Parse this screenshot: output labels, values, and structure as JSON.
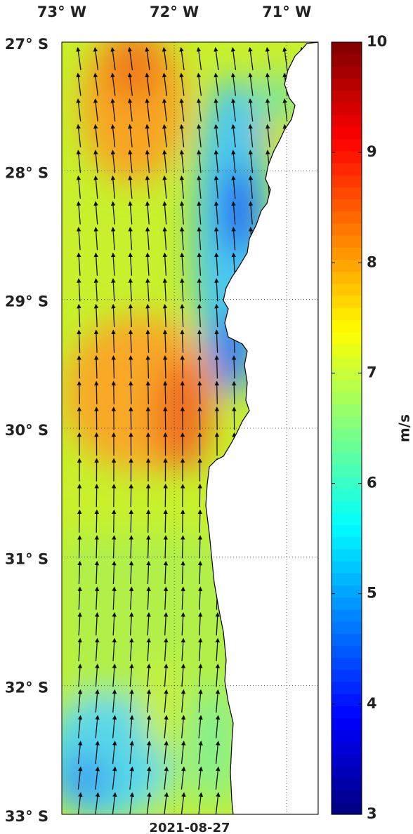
{
  "map": {
    "x_axis": {
      "lim": [
        -73,
        -70.72
      ],
      "ticks": [
        {
          "value": -73,
          "label": "73° W"
        },
        {
          "value": -72,
          "label": "72° W"
        },
        {
          "value": -71,
          "label": "71° W"
        }
      ]
    },
    "y_axis": {
      "lim": [
        -33,
        -27
      ],
      "ticks": [
        {
          "value": -27,
          "label": "27° S"
        },
        {
          "value": -28,
          "label": "28° S"
        },
        {
          "value": -29,
          "label": "29° S"
        },
        {
          "value": -30,
          "label": "30° S"
        },
        {
          "value": -31,
          "label": "31° S"
        },
        {
          "value": -32,
          "label": "32° S"
        },
        {
          "value": -33,
          "label": "33° S"
        }
      ]
    },
    "date": "2021-08-27",
    "colorbar": {
      "label": "m/s",
      "lim": [
        3,
        10
      ],
      "ticks": [
        3,
        4,
        5,
        6,
        7,
        8,
        9,
        10
      ],
      "colormap": "jet"
    }
  }
}
